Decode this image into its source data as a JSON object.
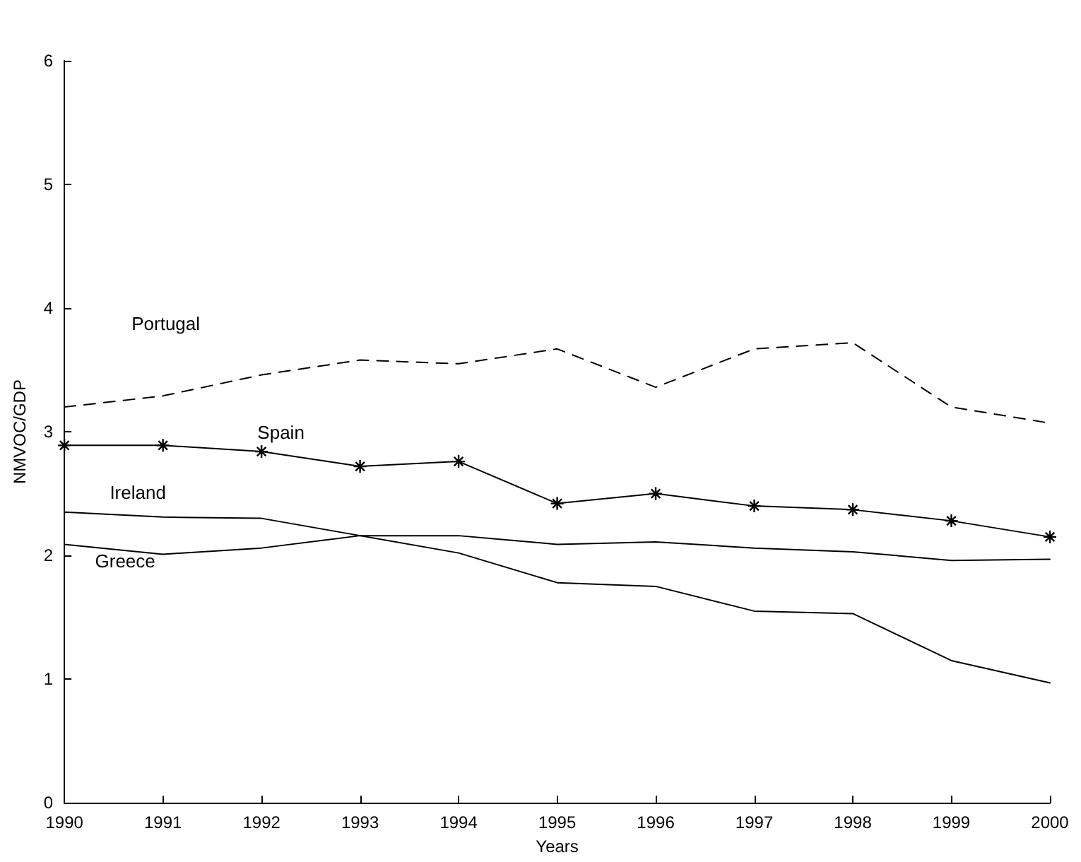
{
  "chart_data": {
    "type": "line",
    "xlabel": "Years",
    "ylabel": "NMVOC/GDP",
    "x": [
      1990,
      1991,
      1992,
      1993,
      1994,
      1995,
      1996,
      1997,
      1998,
      1999,
      2000
    ],
    "series": [
      {
        "name": "Portugal",
        "color": "#000000",
        "line_style": "dashed",
        "marker": "none",
        "values": [
          3.2,
          3.29,
          3.46,
          3.58,
          3.55,
          3.67,
          3.36,
          3.67,
          3.72,
          3.2,
          3.07
        ]
      },
      {
        "name": "Spain",
        "color": "#000000",
        "line_style": "solid",
        "marker": "cross",
        "values": [
          2.89,
          2.89,
          2.84,
          2.72,
          2.76,
          2.42,
          2.5,
          2.4,
          2.37,
          2.28,
          2.15
        ]
      },
      {
        "name": "Ireland",
        "color": "#000000",
        "line_style": "solid",
        "marker": "none",
        "values": [
          2.35,
          2.31,
          2.3,
          2.16,
          2.02,
          1.78,
          1.75,
          1.55,
          1.53,
          1.15,
          0.97
        ]
      },
      {
        "name": "Greece",
        "color": "#000000",
        "line_style": "solid",
        "marker": "none",
        "values": [
          2.09,
          2.01,
          2.06,
          2.16,
          2.16,
          2.09,
          2.11,
          2.06,
          2.03,
          1.96,
          1.97
        ]
      }
    ],
    "xlim": [
      1990,
      2000
    ],
    "xticks": [
      1990,
      1991,
      1992,
      1993,
      1994,
      1995,
      1996,
      1997,
      1998,
      1999,
      2000
    ],
    "ylim": [
      0,
      6
    ],
    "yticks": [
      0,
      1,
      2,
      3,
      4,
      5,
      6
    ],
    "grid": false,
    "legend": false
  }
}
